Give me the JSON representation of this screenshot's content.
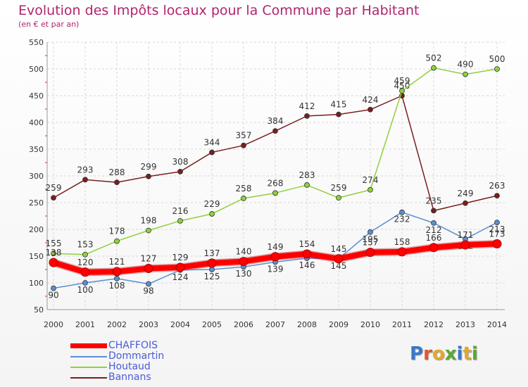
{
  "chart_data": {
    "type": "line",
    "title": "Evolution des Impôts locaux pour la Commune par Habitant",
    "subtitle": "(en € et par an)",
    "xlabel": "",
    "ylabel": "",
    "ylim": [
      50,
      550
    ],
    "yticks": [
      50,
      100,
      150,
      200,
      250,
      300,
      350,
      400,
      450,
      500,
      550
    ],
    "x": [
      "2000",
      "2001",
      "2002",
      "2003",
      "2004",
      "2005",
      "2006",
      "2007",
      "2008",
      "2009",
      "2010",
      "2011",
      "2012",
      "2013",
      "2014"
    ],
    "series": [
      {
        "name": "Bannans",
        "color": "#7a1e1e",
        "values": [
          259,
          293,
          288,
          299,
          308,
          344,
          357,
          384,
          412,
          415,
          424,
          450,
          235,
          249,
          263
        ]
      },
      {
        "name": "Houtaud",
        "color": "#8fd13a",
        "values": [
          155,
          153,
          178,
          198,
          216,
          229,
          258,
          268,
          283,
          259,
          274,
          459,
          502,
          490,
          500
        ]
      },
      {
        "name": "Dommartin",
        "color": "#5b8fd1",
        "values": [
          90,
          100,
          108,
          98,
          124,
          125,
          130,
          139,
          146,
          145,
          195,
          232,
          212,
          182,
          213
        ]
      },
      {
        "name": "CHAFFOIS",
        "color": "#ff0000",
        "values": [
          138,
          120,
          121,
          127,
          129,
          137,
          140,
          149,
          154,
          145,
          157,
          158,
          166,
          171,
          173
        ]
      }
    ],
    "legend_order": [
      "CHAFFOIS",
      "Dommartin",
      "Houtaud",
      "Bannans"
    ],
    "grid": true,
    "legend": "bottom-left"
  },
  "logo": {
    "text": "Proxiti"
  }
}
